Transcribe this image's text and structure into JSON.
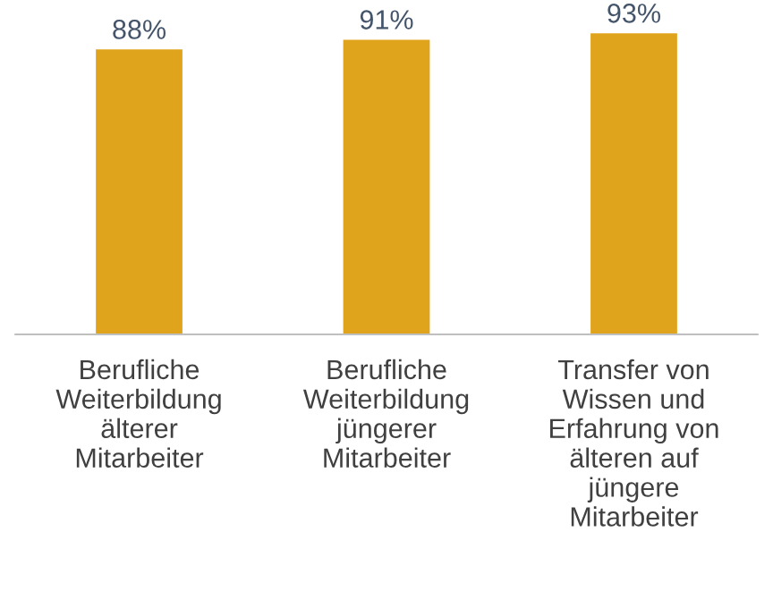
{
  "chart_data": {
    "type": "bar",
    "categories": [
      "Berufliche\nWeiterbildung\nälterer\nMitarbeiter",
      "Berufliche\nWeiterbildung\njüngerer\nMitarbeiter",
      "Transfer von\nWissen und\nErfahrung von\nälteren auf\njüngere\nMitarbeiter"
    ],
    "values": [
      88,
      91,
      93
    ],
    "color": "#e0a41c",
    "value_labels": [
      "88%",
      "91%",
      "93%"
    ],
    "tick_labels": "x",
    "grid": false,
    "legend": false
  }
}
